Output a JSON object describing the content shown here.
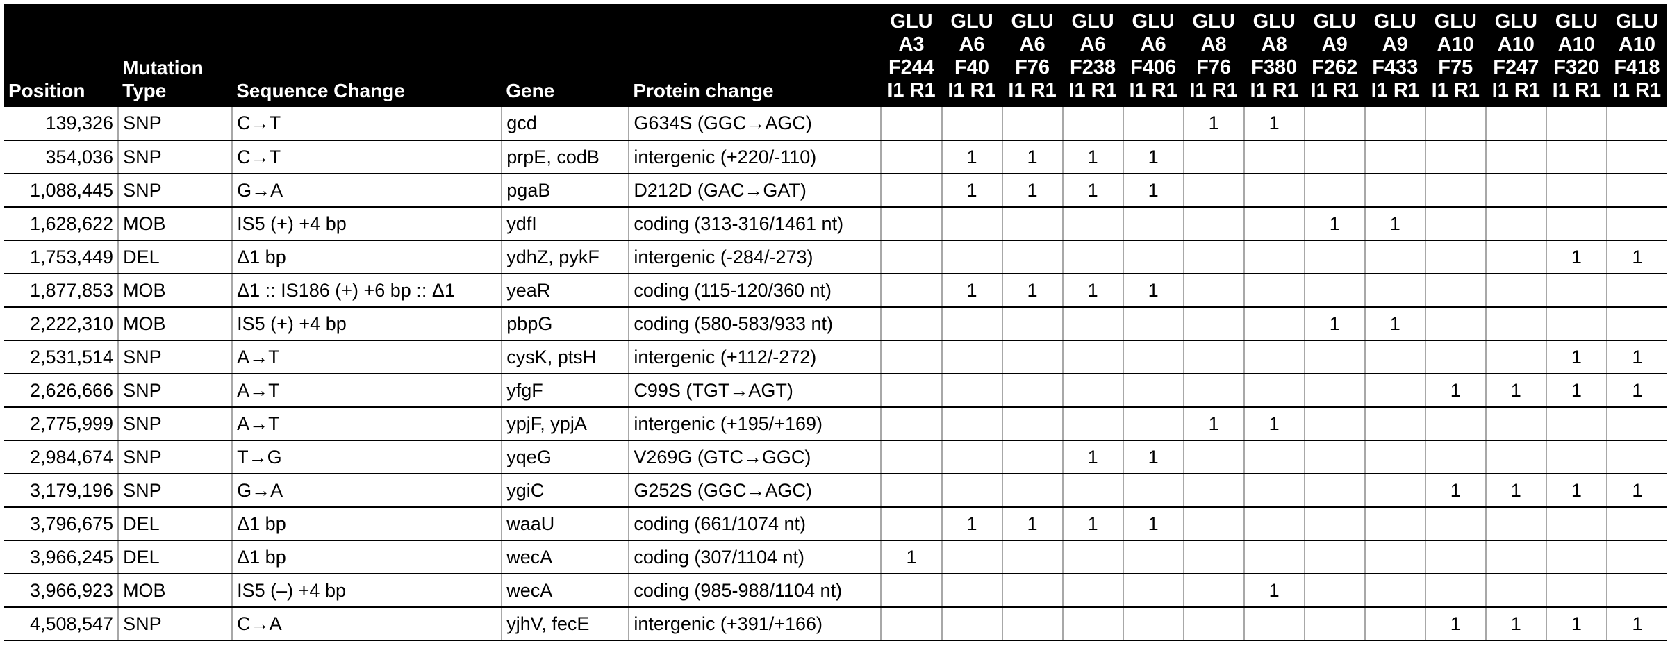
{
  "headers": {
    "position": "Position",
    "mutation_type_l1": "Mutation",
    "mutation_type_l2": "Type",
    "sequence_change": "Sequence Change",
    "gene": "Gene",
    "protein_change": "Protein change",
    "samples": [
      {
        "l1": "GLU",
        "l2": "A3",
        "l3": "F244",
        "l4": "I1 R1"
      },
      {
        "l1": "GLU",
        "l2": "A6",
        "l3": "F40",
        "l4": "I1 R1"
      },
      {
        "l1": "GLU",
        "l2": "A6",
        "l3": "F76",
        "l4": "I1 R1"
      },
      {
        "l1": "GLU",
        "l2": "A6",
        "l3": "F238",
        "l4": "I1 R1"
      },
      {
        "l1": "GLU",
        "l2": "A6",
        "l3": "F406",
        "l4": "I1 R1"
      },
      {
        "l1": "GLU",
        "l2": "A8",
        "l3": "F76",
        "l4": "I1 R1"
      },
      {
        "l1": "GLU",
        "l2": "A8",
        "l3": "F380",
        "l4": "I1 R1"
      },
      {
        "l1": "GLU",
        "l2": "A9",
        "l3": "F262",
        "l4": "I1 R1"
      },
      {
        "l1": "GLU",
        "l2": "A9",
        "l3": "F433",
        "l4": "I1 R1"
      },
      {
        "l1": "GLU",
        "l2": "A10",
        "l3": "F75",
        "l4": "I1 R1"
      },
      {
        "l1": "GLU",
        "l2": "A10",
        "l3": "F247",
        "l4": "I1 R1"
      },
      {
        "l1": "GLU",
        "l2": "A10",
        "l3": "F320",
        "l4": "I1 R1"
      },
      {
        "l1": "GLU",
        "l2": "A10",
        "l3": "F418",
        "l4": "I1 R1"
      }
    ]
  },
  "rows": [
    {
      "position": "139,326",
      "type": "SNP",
      "seq": "C→T",
      "gene": "gcd",
      "protein": "G634S (GGC→AGC)",
      "s": [
        "",
        "",
        "",
        "",
        "",
        "1",
        "1",
        "",
        "",
        "",
        "",
        "",
        ""
      ]
    },
    {
      "position": "354,036",
      "type": "SNP",
      "seq": "C→T",
      "gene": "prpE,  codB",
      "protein": "intergenic (+220/‑110)",
      "s": [
        "",
        "1",
        "1",
        "1",
        "1",
        "",
        "",
        "",
        "",
        "",
        "",
        "",
        ""
      ]
    },
    {
      "position": "1,088,445",
      "type": "SNP",
      "seq": "G→A",
      "gene": "pgaB",
      "protein": "D212D (GAC→GAT)",
      "s": [
        "",
        "1",
        "1",
        "1",
        "1",
        "",
        "",
        "",
        "",
        "",
        "",
        "",
        ""
      ]
    },
    {
      "position": "1,628,622",
      "type": "MOB",
      "seq": "IS5 (+) +4 bp",
      "gene": "ydfI",
      "protein": "coding (313‑316/1461 nt)",
      "s": [
        "",
        "",
        "",
        "",
        "",
        "",
        "",
        "1",
        "1",
        "",
        "",
        "",
        ""
      ]
    },
    {
      "position": "1,753,449",
      "type": "DEL",
      "seq": "Δ1 bp",
      "gene": "ydhZ,  pykF",
      "protein": "intergenic (‑284/‑273)",
      "s": [
        "",
        "",
        "",
        "",
        "",
        "",
        "",
        "",
        "",
        "",
        "",
        "1",
        "1"
      ]
    },
    {
      "position": "1,877,853",
      "type": "MOB",
      "seq": "Δ1 :: IS186 (+) +6 bp :: Δ1",
      "gene": "yeaR",
      "protein": "coding (115‑120/360 nt)",
      "s": [
        "",
        "1",
        "1",
        "1",
        "1",
        "",
        "",
        "",
        "",
        "",
        "",
        "",
        ""
      ]
    },
    {
      "position": "2,222,310",
      "type": "MOB",
      "seq": "IS5 (+) +4 bp",
      "gene": "pbpG",
      "protein": "coding (580‑583/933 nt)",
      "s": [
        "",
        "",
        "",
        "",
        "",
        "",
        "",
        "1",
        "1",
        "",
        "",
        "",
        ""
      ]
    },
    {
      "position": "2,531,514",
      "type": "SNP",
      "seq": "A→T",
      "gene": "cysK,  ptsH",
      "protein": "intergenic (+112/‑272)",
      "s": [
        "",
        "",
        "",
        "",
        "",
        "",
        "",
        "",
        "",
        "",
        "",
        "1",
        "1"
      ]
    },
    {
      "position": "2,626,666",
      "type": "SNP",
      "seq": "A→T",
      "gene": "yfgF",
      "protein": "C99S (TGT→AGT)",
      "s": [
        "",
        "",
        "",
        "",
        "",
        "",
        "",
        "",
        "",
        "1",
        "1",
        "1",
        "1"
      ]
    },
    {
      "position": "2,775,999",
      "type": "SNP",
      "seq": "A→T",
      "gene": "ypjF,  ypjA",
      "protein": "intergenic (+195/+169)",
      "s": [
        "",
        "",
        "",
        "",
        "",
        "1",
        "1",
        "",
        "",
        "",
        "",
        "",
        ""
      ]
    },
    {
      "position": "2,984,674",
      "type": "SNP",
      "seq": "T→G",
      "gene": "yqeG",
      "protein": "V269G (GTC→GGC)",
      "s": [
        "",
        "",
        "",
        "1",
        "1",
        "",
        "",
        "",
        "",
        "",
        "",
        "",
        ""
      ]
    },
    {
      "position": "3,179,196",
      "type": "SNP",
      "seq": "G→A",
      "gene": "ygiC",
      "protein": "G252S (GGC→AGC)",
      "s": [
        "",
        "",
        "",
        "",
        "",
        "",
        "",
        "",
        "",
        "1",
        "1",
        "1",
        "1"
      ]
    },
    {
      "position": "3,796,675",
      "type": "DEL",
      "seq": "Δ1 bp",
      "gene": "waaU",
      "protein": "coding (661/1074 nt)",
      "s": [
        "",
        "1",
        "1",
        "1",
        "1",
        "",
        "",
        "",
        "",
        "",
        "",
        "",
        ""
      ]
    },
    {
      "position": "3,966,245",
      "type": "DEL",
      "seq": "Δ1 bp",
      "gene": "wecA",
      "protein": "coding (307/1104 nt)",
      "s": [
        "1",
        "",
        "",
        "",
        "",
        "",
        "",
        "",
        "",
        "",
        "",
        "",
        ""
      ]
    },
    {
      "position": "3,966,923",
      "type": "MOB",
      "seq": "IS5 (–) +4 bp",
      "gene": "wecA",
      "protein": "coding (985‑988/1104 nt)",
      "s": [
        "",
        "",
        "",
        "",
        "",
        "",
        "1",
        "",
        "",
        "",
        "",
        "",
        ""
      ]
    },
    {
      "position": "4,508,547",
      "type": "SNP",
      "seq": "C→A",
      "gene": "yjhV,  fecE",
      "protein": "intergenic (+391/+166)",
      "s": [
        "",
        "",
        "",
        "",
        "",
        "",
        "",
        "",
        "",
        "1",
        "1",
        "1",
        "1"
      ]
    }
  ]
}
